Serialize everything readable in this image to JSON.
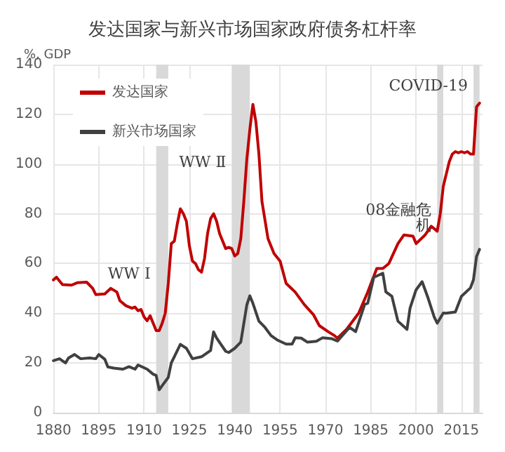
{
  "chart_data": {
    "type": "line",
    "title": "发达国家与新兴市场国家政府债务杠杆率",
    "ylabel": "%, GDP",
    "xlim": [
      1880,
      2022
    ],
    "xticks": [
      1880,
      1895,
      1910,
      1925,
      1940,
      1955,
      1970,
      1985,
      2000,
      2015
    ],
    "ylim": [
      0,
      140
    ],
    "yticks": [
      0,
      20,
      40,
      60,
      80,
      100,
      120,
      140
    ],
    "grid": true,
    "legend": "top left",
    "marker": "none",
    "line_style": "solid",
    "bands": [
      {
        "axis": "x",
        "from": 1914,
        "to": 1918,
        "color": "#d9d9d9"
      },
      {
        "axis": "x",
        "from": 1939,
        "to": 1945,
        "color": "#d9d9d9"
      },
      {
        "axis": "x",
        "from": 2007,
        "to": 2009,
        "color": "#d9d9d9"
      },
      {
        "axis": "x",
        "from": 2019,
        "to": 2021,
        "color": "#d9d9d9"
      }
    ],
    "annotations": [
      "WW Ⅰ",
      "WW Ⅱ",
      "08金融危机",
      "COVID-19"
    ],
    "series": [
      {
        "name": "发达国家",
        "color": "#c00000",
        "x": [
          1880,
          1881,
          1883,
          1886,
          1888,
          1891,
          1893,
          1894,
          1897,
          1899,
          1901,
          1902,
          1904,
          1906,
          1907,
          1908,
          1909,
          1910,
          1911,
          1912,
          1913,
          1914,
          1915,
          1916,
          1917,
          1918,
          1919,
          1920,
          1921,
          1922,
          1923,
          1924,
          1925,
          1926,
          1927,
          1928,
          1929,
          1930,
          1931,
          1932,
          1933,
          1934,
          1935,
          1936,
          1937,
          1938,
          1939,
          1940,
          1941,
          1942,
          1943,
          1944,
          1945,
          1946,
          1947,
          1948,
          1949,
          1951,
          1953,
          1955,
          1957,
          1960,
          1963,
          1966,
          1968,
          1971,
          1973,
          1974,
          1977,
          1981,
          1984,
          1987,
          1989,
          1991,
          1994,
          1996,
          1999,
          2000,
          2003,
          2005,
          2007,
          2008,
          2009,
          2010,
          2011,
          2012,
          2013,
          2014,
          2015,
          2016,
          2017,
          2018,
          2019,
          2020,
          2021
        ],
        "values": [
          53.4,
          54.5,
          51.5,
          51.3,
          52.3,
          52.5,
          50,
          47.5,
          47.8,
          50,
          48.5,
          45,
          43,
          42,
          42.5,
          41,
          41.5,
          38.5,
          37,
          39,
          36,
          33,
          33,
          36,
          40,
          52,
          68,
          69,
          76,
          82,
          80,
          77,
          67,
          61,
          60,
          57.5,
          56.5,
          62,
          72,
          78,
          80,
          77,
          72,
          69,
          66,
          66.5,
          66,
          63,
          64,
          70,
          85,
          102,
          114,
          124,
          117,
          104,
          85,
          70,
          64,
          61,
          52,
          48.5,
          43.5,
          39.5,
          35,
          32.5,
          31,
          30,
          33.5,
          40,
          48.5,
          58,
          58,
          60,
          68,
          71.5,
          71,
          68,
          71.5,
          75,
          73,
          80,
          91,
          96,
          101,
          104,
          105,
          104.5,
          105,
          104.5,
          105,
          104,
          104,
          123,
          124.5
        ]
      },
      {
        "name": "新兴市场国家",
        "color": "#404040",
        "x": [
          1880,
          1882,
          1884,
          1885,
          1887,
          1889,
          1892,
          1894,
          1895,
          1897,
          1898,
          1900,
          1903,
          1905,
          1907,
          1908,
          1911,
          1913,
          1914,
          1915,
          1916,
          1918,
          1919,
          1920,
          1922,
          1924,
          1926,
          1929,
          1932,
          1933,
          1934,
          1937,
          1938,
          1940,
          1942,
          1944,
          1945,
          1946,
          1948,
          1950,
          1952,
          1954,
          1957,
          1959,
          1960,
          1962,
          1964,
          1967,
          1969,
          1972,
          1974,
          1978,
          1980,
          1983,
          1984,
          1986,
          1989,
          1990,
          1992,
          1994,
          1997,
          1998,
          2000,
          2002,
          2004,
          2006,
          2007,
          2009,
          2010,
          2013,
          2015,
          2018,
          2019,
          2020,
          2021
        ],
        "values": [
          20.9,
          21.7,
          20,
          22,
          23.4,
          21.7,
          22,
          21.7,
          23.4,
          21.5,
          18.4,
          17.9,
          17.5,
          18.5,
          17.5,
          19.2,
          17.5,
          15.5,
          15,
          9.2,
          10.9,
          14.2,
          20,
          22.5,
          27.5,
          25.9,
          21.7,
          22.5,
          25,
          32.5,
          30,
          24.7,
          24.2,
          25.9,
          28.4,
          43.4,
          47,
          44,
          36.8,
          34.3,
          31,
          29.3,
          27.6,
          27.6,
          30.1,
          30,
          28.4,
          28.7,
          30.1,
          29.8,
          28.8,
          34.3,
          32.6,
          43.6,
          44,
          54.4,
          56.1,
          48.6,
          46.8,
          36.8,
          33.5,
          42,
          49.4,
          52.7,
          46,
          38.5,
          36,
          40.1,
          40,
          40.5,
          46.8,
          50.2,
          53.5,
          62.8,
          65.7
        ]
      }
    ]
  }
}
